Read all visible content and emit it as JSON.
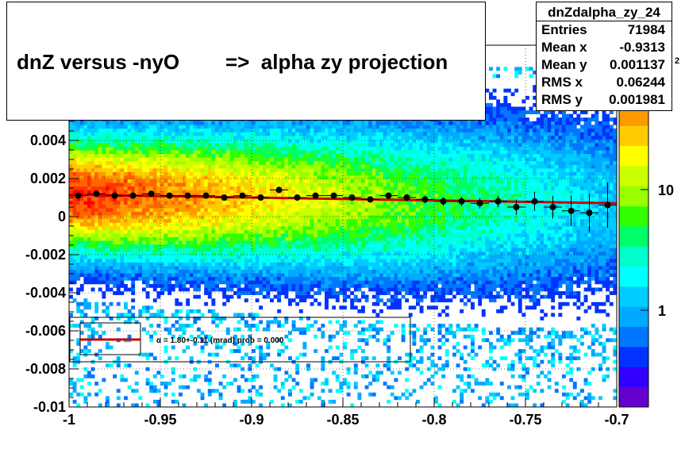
{
  "title": "dnZ versus -nyO        =>  alpha zy projection",
  "stats": {
    "name": "dnZdalpha_zy_24",
    "rows": [
      {
        "label": "Entries",
        "value": "71984"
      },
      {
        "label": "Mean x",
        "value": "-0.9313"
      },
      {
        "label": "Mean y",
        "value": "0.001137"
      },
      {
        "label": "RMS x",
        "value": "0.06244"
      },
      {
        "label": "RMS y",
        "value": "0.001981"
      }
    ]
  },
  "fit_legend": "α =    1.80+-0.11 (mrad) prob = 0.000",
  "colors": {
    "fit_line": "#cc0000",
    "markers": "#000000",
    "palette": [
      "#6600cc",
      "#3300ff",
      "#0033ff",
      "#0077ff",
      "#00aaff",
      "#00ccff",
      "#00ffff",
      "#00ffcc",
      "#00ff66",
      "#33ff00",
      "#99ff00",
      "#ccff00",
      "#ffff00",
      "#ffcc00",
      "#ff9900",
      "#ff6600",
      "#ff3300",
      "#ff0000"
    ]
  },
  "chart_data": {
    "type": "heatmap",
    "xlim": [
      -1,
      -0.7
    ],
    "ylim": [
      -0.01,
      0.009
    ],
    "xticks": [
      "-1",
      "-0.95",
      "-0.9",
      "-0.85",
      "-0.8",
      "-0.75",
      "-0.7"
    ],
    "yticks": [
      "-0.01",
      "-0.008",
      "-0.006",
      "-0.004",
      "-0.002",
      "0",
      "0.002",
      "0.004"
    ],
    "zscale": "log",
    "z_ticks": [
      "1",
      "10"
    ],
    "z_tick_partial": "2",
    "grid": true,
    "profile": {
      "x": [
        -0.995,
        -0.985,
        -0.975,
        -0.965,
        -0.955,
        -0.945,
        -0.935,
        -0.925,
        -0.915,
        -0.905,
        -0.895,
        -0.885,
        -0.875,
        -0.865,
        -0.855,
        -0.845,
        -0.835,
        -0.825,
        -0.815,
        -0.805,
        -0.795,
        -0.785,
        -0.775,
        -0.765,
        -0.755,
        -0.745,
        -0.735,
        -0.725,
        -0.715,
        -0.705
      ],
      "y": [
        0.0011,
        0.0012,
        0.0011,
        0.0011,
        0.0012,
        0.0011,
        0.0011,
        0.0011,
        0.001,
        0.0011,
        0.001,
        0.0014,
        0.001,
        0.0011,
        0.0011,
        0.001,
        0.0009,
        0.0011,
        0.001,
        0.0009,
        0.0008,
        0.0008,
        0.0007,
        0.0008,
        0.0005,
        0.0008,
        0.0005,
        0.0003,
        0.0002,
        0.0006
      ],
      "yerr": [
        5e-05,
        5e-05,
        5e-05,
        5e-05,
        5e-05,
        5e-05,
        6e-05,
        6e-05,
        7e-05,
        7e-05,
        8e-05,
        9e-05,
        0.0001,
        0.0001,
        0.00012,
        0.00013,
        0.00015,
        0.00016,
        0.00018,
        0.0002,
        0.00022,
        0.00025,
        0.00028,
        0.0003,
        0.0004,
        0.0005,
        0.0006,
        0.0008,
        0.001,
        0.0012
      ]
    },
    "fit_line": {
      "x": [
        -1,
        -0.7
      ],
      "y": [
        0.00115,
        0.0007
      ]
    }
  }
}
